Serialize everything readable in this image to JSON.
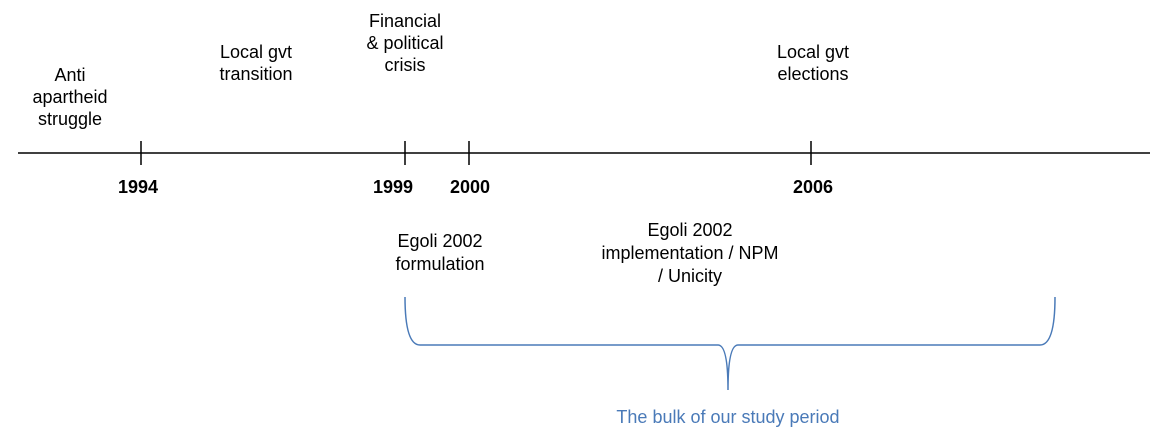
{
  "events": [
    {
      "lines": [
        "Anti",
        "apartheid",
        "struggle"
      ]
    },
    {
      "lines": [
        "Local gvt",
        "transition"
      ]
    },
    {
      "lines": [
        "Financial",
        "& political",
        "crisis"
      ]
    },
    {
      "lines": [
        "Local gvt",
        "elections"
      ]
    }
  ],
  "years": [
    "1994",
    "1999",
    "2000",
    "2006"
  ],
  "phases": [
    {
      "lines": [
        "Egoli 2002",
        "formulation"
      ]
    },
    {
      "lines": [
        "Egoli 2002",
        "implementation / NPM",
        "/ Unicity"
      ]
    }
  ],
  "caption": "The bulk of our study period"
}
